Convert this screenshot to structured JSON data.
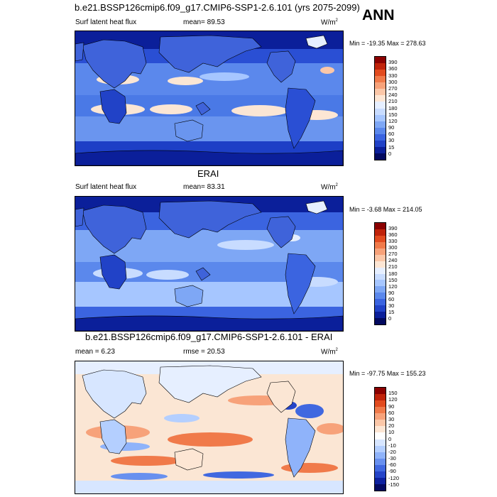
{
  "header": {
    "title": "b.e21.BSSP126cmip6.f09_g17.CMIP6-SSP1-2.6.101 (yrs 2075-2099)",
    "season": "ANN"
  },
  "panels": [
    {
      "id": "model",
      "heading": "",
      "left_label": "Surf latent heat flux",
      "center_label": "mean=  89.53",
      "units": "W/m",
      "units_sup": "2",
      "minmax": "Min = -19.35 Max = 278.63",
      "colorbar": {
        "levels": [
          "390",
          "360",
          "330",
          "300",
          "270",
          "240",
          "210",
          "180",
          "150",
          "120",
          "90",
          "60",
          "30",
          "15",
          "0"
        ],
        "colors": [
          "#8b0000",
          "#c0230a",
          "#e24b1f",
          "#f07a4a",
          "#f7a27a",
          "#fbc7a8",
          "#fde6d4",
          "#e6efff",
          "#c8dcff",
          "#a6c6ff",
          "#7ea7f5",
          "#5b88ec",
          "#3b64e0",
          "#2142c7",
          "#0b1f9a",
          "#02095f"
        ]
      }
    },
    {
      "id": "obs",
      "heading": "ERAI",
      "left_label": "Surf latent heat flux",
      "center_label": "mean=  83.31",
      "units": "W/m",
      "units_sup": "2",
      "minmax": "Min =  -3.68 Max = 214.05",
      "colorbar": {
        "levels": [
          "390",
          "360",
          "330",
          "300",
          "270",
          "240",
          "210",
          "180",
          "150",
          "120",
          "90",
          "60",
          "30",
          "15",
          "0"
        ],
        "colors": [
          "#8b0000",
          "#c0230a",
          "#e24b1f",
          "#f07a4a",
          "#f7a27a",
          "#fbc7a8",
          "#fde6d4",
          "#e6efff",
          "#c8dcff",
          "#a6c6ff",
          "#7ea7f5",
          "#5b88ec",
          "#3b64e0",
          "#2142c7",
          "#0b1f9a",
          "#02095f"
        ]
      }
    },
    {
      "id": "diff",
      "heading": "b.e21.BSSP126cmip6.f09_g17.CMIP6-SSP1-2.6.101 - ERAI",
      "left_label": "mean =   6.23",
      "center_label": "rmse =  20.53",
      "units": "W/m",
      "units_sup": "2",
      "minmax": "Min = -97.75 Max = 155.23",
      "colorbar": {
        "levels": [
          "150",
          "120",
          "90",
          "60",
          "30",
          "20",
          "10",
          "0",
          "-10",
          "-20",
          "-30",
          "-60",
          "-90",
          "-120",
          "-150"
        ],
        "colors": [
          "#8b0000",
          "#c0230a",
          "#e24b1f",
          "#f07a4a",
          "#f7a27a",
          "#fbc7a8",
          "#fde6d4",
          "#ffffff",
          "#d7e6ff",
          "#b4cfff",
          "#8fb3fa",
          "#6890ef",
          "#4068e0",
          "#2444c8",
          "#0d21a0",
          "#030a62"
        ]
      }
    }
  ]
}
